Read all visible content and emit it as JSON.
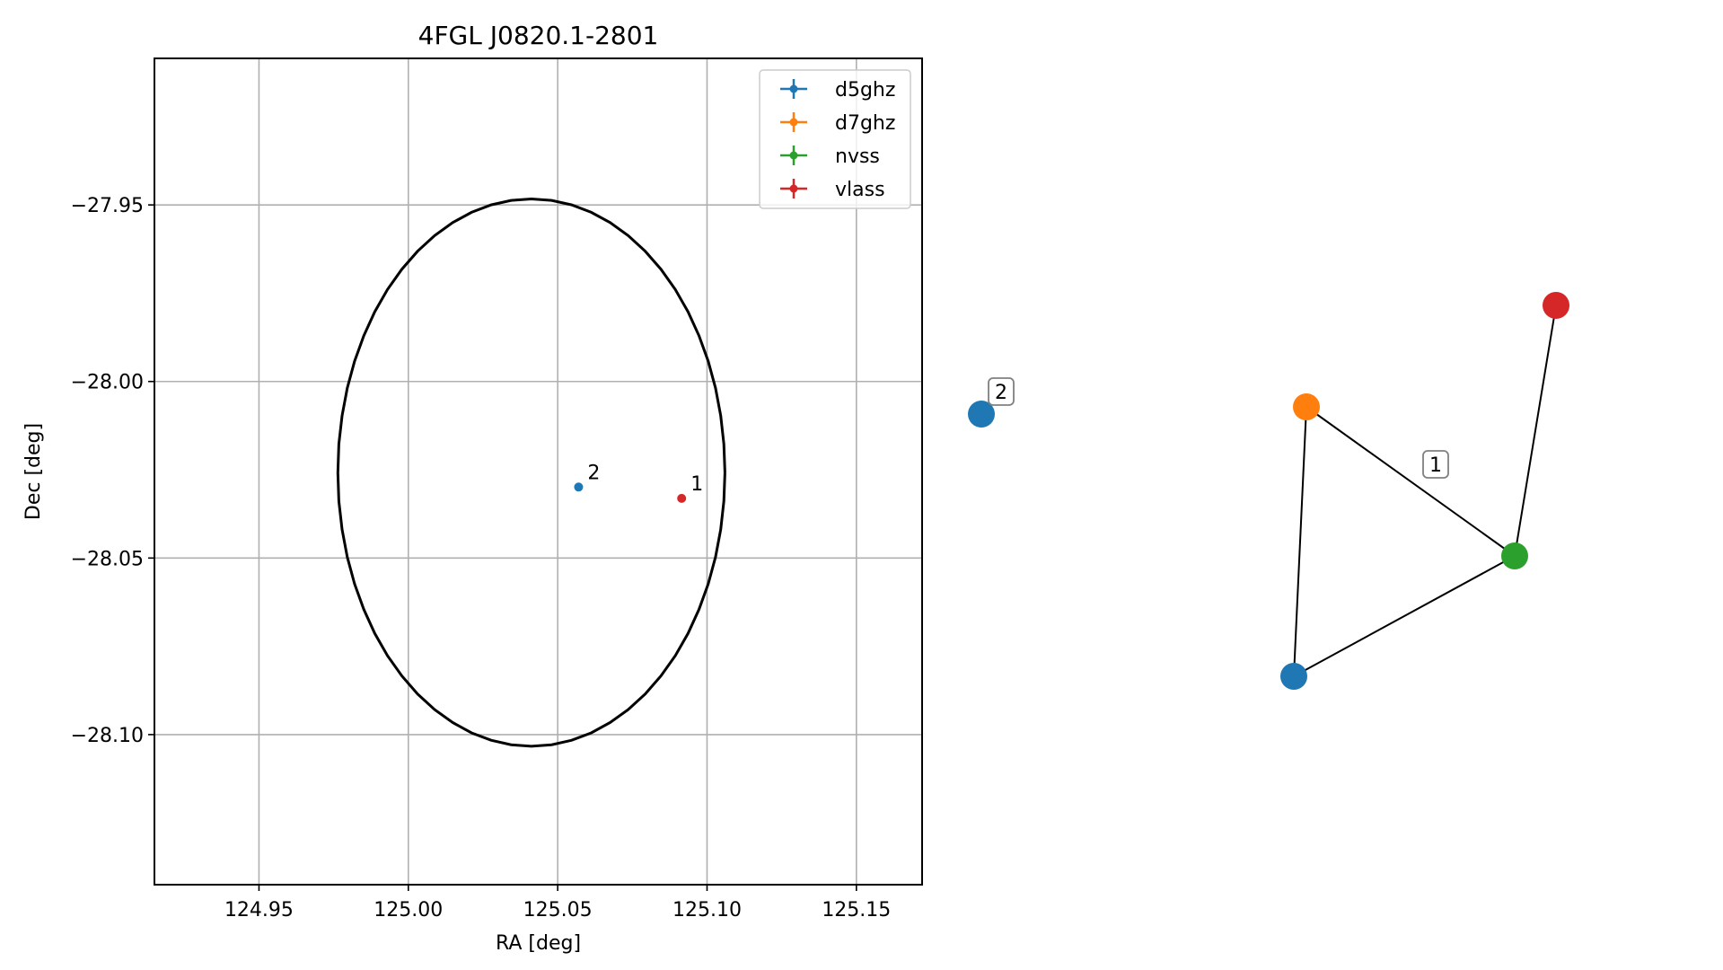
{
  "chart_data": [
    {
      "type": "scatter",
      "title": "4FGL J0820.1-2801",
      "xlabel": "RA [deg]",
      "ylabel": "Dec [deg]",
      "xlim": [
        124.915,
        125.172
      ],
      "ylim": [
        -28.1425,
        -27.9085
      ],
      "xticks": [
        124.95,
        125.0,
        125.05,
        125.1,
        125.15
      ],
      "xtick_labels": [
        "124.95",
        "125.00",
        "125.05",
        "125.10",
        "125.15"
      ],
      "yticks": [
        -27.95,
        -28.0,
        -28.05,
        -28.1
      ],
      "ytick_labels": [
        "−27.95",
        "−28.00",
        "−28.05",
        "−28.10"
      ],
      "grid": true,
      "legend_position": "top-right",
      "series": [
        {
          "name": "d5ghz",
          "color": "#1f77b4",
          "points": [
            {
              "x": 125.057,
              "y": -28.0299
            }
          ]
        },
        {
          "name": "d7ghz",
          "color": "#ff7f0e",
          "points": []
        },
        {
          "name": "nvss",
          "color": "#2ca02c",
          "points": []
        },
        {
          "name": "vlass",
          "color": "#d62728",
          "points": [
            {
              "x": 125.0915,
              "y": -28.0331
            }
          ]
        }
      ],
      "point_labels": [
        {
          "text": "2",
          "x": 125.057,
          "y": -28.0299
        },
        {
          "text": "1",
          "x": 125.0915,
          "y": -28.0331
        }
      ],
      "ellipse": {
        "center_ra": 125.0412,
        "center_dec": -28.0258,
        "ra_radius": 0.0648,
        "dec_radius": 0.0775,
        "color": "#000000"
      }
    },
    {
      "type": "network",
      "nodes": [
        {
          "id": "iso-d5ghz",
          "color": "#1f77b4"
        },
        {
          "id": "d5ghz",
          "color": "#1f77b4"
        },
        {
          "id": "d7ghz",
          "color": "#ff7f0e"
        },
        {
          "id": "nvss",
          "color": "#2ca02c"
        },
        {
          "id": "vlass",
          "color": "#d62728"
        }
      ],
      "edges": [
        [
          "d7ghz",
          "nvss"
        ],
        [
          "d7ghz",
          "d5ghz"
        ],
        [
          "d5ghz",
          "nvss"
        ],
        [
          "nvss",
          "vlass"
        ]
      ],
      "cluster_labels": [
        "2",
        "1"
      ]
    }
  ]
}
